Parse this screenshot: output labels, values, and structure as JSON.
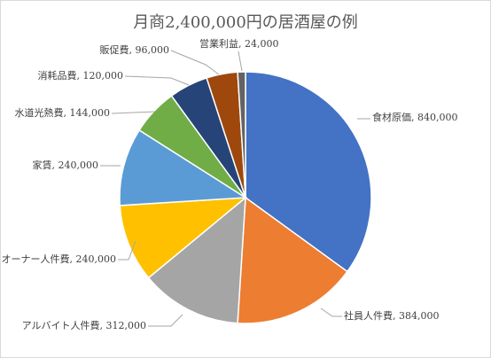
{
  "chart_data": {
    "type": "pie",
    "title": "月商2,400,000円の居酒屋の例",
    "slices": [
      {
        "name": "食材原価",
        "value": 840000,
        "label": "食材原価, 840,000",
        "color": "#4472C4"
      },
      {
        "name": "社員人件費",
        "value": 384000,
        "label": "社員人件費, 384,000",
        "color": "#ED7D31"
      },
      {
        "name": "アルバイト人件費",
        "value": 312000,
        "label": "アルバイト人件費, 312,000",
        "color": "#A5A5A5"
      },
      {
        "name": "オーナー人件費",
        "value": 240000,
        "label": "オーナー人件費, 240,000",
        "color": "#FFC000"
      },
      {
        "name": "家賃",
        "value": 240000,
        "label": "家賃, 240,000",
        "color": "#5B9BD5"
      },
      {
        "name": "水道光熱費",
        "value": 144000,
        "label": "水道光熱費, 144,000",
        "color": "#70AD47"
      },
      {
        "name": "消耗品費",
        "value": 120000,
        "label": "消耗品費, 120,000",
        "color": "#264478"
      },
      {
        "name": "販促費",
        "value": 96000,
        "label": "販促費, 96,000",
        "color": "#9E480E"
      },
      {
        "name": "営業利益",
        "value": 24000,
        "label": "営業利益, 24,000",
        "color": "#636363"
      }
    ]
  }
}
